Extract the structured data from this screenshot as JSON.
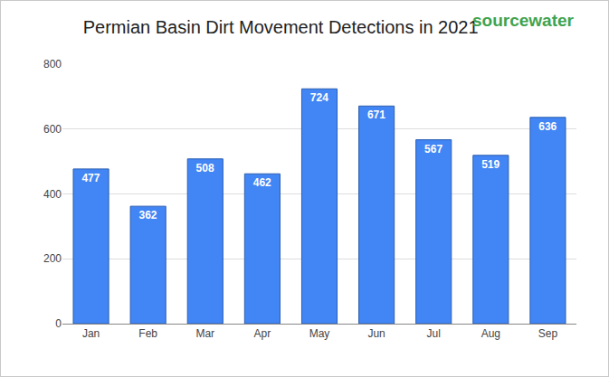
{
  "chart_data": {
    "type": "bar",
    "title": "Permian Basin Dirt Movement Detections in 2021",
    "categories": [
      "Jan",
      "Feb",
      "Mar",
      "Apr",
      "May",
      "Jun",
      "Jul",
      "Aug",
      "Sep"
    ],
    "values": [
      477,
      362,
      508,
      462,
      724,
      671,
      567,
      519,
      636
    ],
    "color": "#4285f4",
    "ylim": [
      0,
      800
    ],
    "yticks": [
      0,
      200,
      400,
      600,
      800
    ],
    "grid": true,
    "data_labels": true,
    "annotations": [
      "sourcewater"
    ]
  }
}
